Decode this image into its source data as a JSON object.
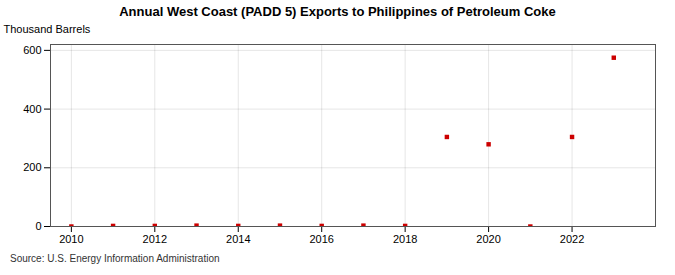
{
  "chart_data": {
    "type": "scatter",
    "title": "Annual West Coast (PADD 5) Exports to Philippines of Petroleum Coke",
    "y_label": "Thousand Barrels",
    "source": "Source: U.S. Energy Information Administration",
    "x": [
      2010,
      2011,
      2012,
      2013,
      2014,
      2015,
      2016,
      2017,
      2018,
      2019,
      2020,
      2021,
      2022,
      2023
    ],
    "values": [
      0,
      2,
      2,
      3,
      2,
      3,
      2,
      3,
      2,
      305,
      280,
      0,
      305,
      575
    ],
    "color": "#cc0000",
    "marker": "square",
    "xlim": [
      2009.5,
      2024.0
    ],
    "ylim": [
      0,
      620
    ],
    "xticks": [
      2010,
      2012,
      2014,
      2016,
      2018,
      2020,
      2022
    ],
    "yticks": [
      0,
      200,
      400,
      600
    ],
    "grid": true
  }
}
